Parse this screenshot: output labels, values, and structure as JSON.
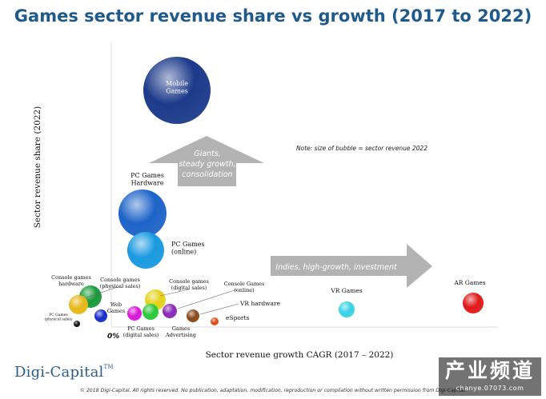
{
  "title": "Games sector revenue share vs growth (2017 to 2022)",
  "chart_data": {
    "type": "scatter",
    "title": "Games sector revenue share vs growth (2017 to 2022)",
    "xlabel": "Sector revenue growth CAGR (2017 – 2022)",
    "ylabel": "Sector revenue share (2022)",
    "x_origin_label": "0%",
    "note": "Note: size of bubble = sector revenue 2022",
    "arrows": [
      {
        "label": "Giants, steady growth, consolidation",
        "direction": "up"
      },
      {
        "label": "Indies, high-growth, investment",
        "direction": "right"
      }
    ],
    "bubbles": [
      {
        "label": "Mobile Games",
        "color": "#1c3a8a"
      },
      {
        "label": "PC Games Hardware",
        "color": "#1e64c8"
      },
      {
        "label": "PC Games (online)",
        "color": "#1a9ae0"
      },
      {
        "label": "Console games hardware",
        "color": "#1a9a3a"
      },
      {
        "label": "PC Games (physical sales)",
        "color": "#111111"
      },
      {
        "label": "Console games (physical sales)",
        "color": "#e6b81a"
      },
      {
        "label": "Web Games",
        "color": "#1a2ec8"
      },
      {
        "label": "PC Games (digital sales)",
        "color": "#d81ad8"
      },
      {
        "label": "Console games (digital sales)",
        "color": "#e6d21a"
      },
      {
        "label": "Games Advertising",
        "color": "#2ac83a"
      },
      {
        "label": "Console Games (online)",
        "color": "#8a2ab8"
      },
      {
        "label": "VR hardware",
        "color": "#8a4a1a"
      },
      {
        "label": "eSports",
        "color": "#e04a1a"
      },
      {
        "label": "VR Games",
        "color": "#3ad2e6"
      },
      {
        "label": "AR Games",
        "color": "#e01a1a"
      }
    ]
  },
  "logo": {
    "text": "Digi-Capital",
    "tm": "TM"
  },
  "copyright": "© 2018 Digi-Capital. All rights reserved. No publication, adaptation, modification, reproduction or compilation without written permission from Digi-Capital.",
  "watermark": {
    "text": "产业频道",
    "url": "chanye.07073.com"
  }
}
